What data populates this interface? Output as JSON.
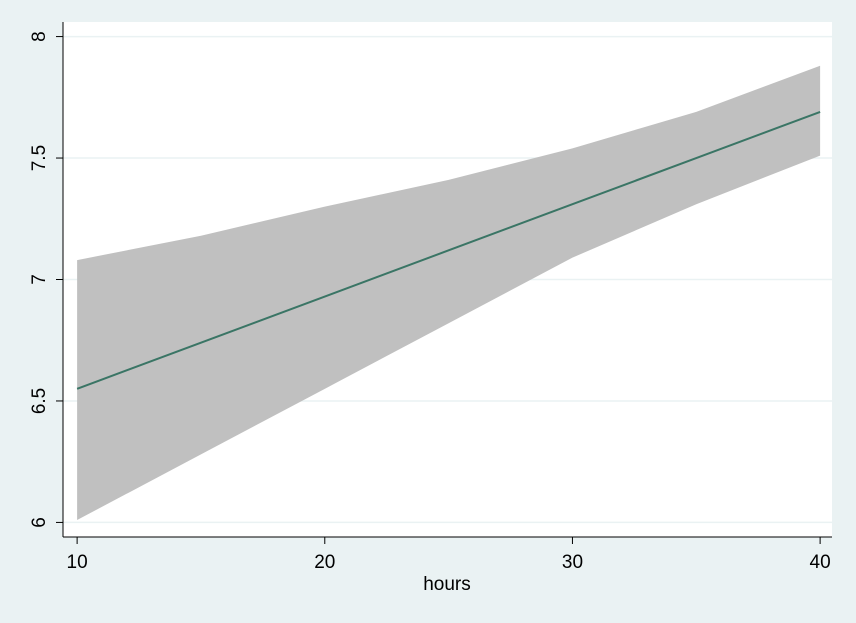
{
  "chart_data": {
    "type": "line",
    "x": [
      10,
      15,
      20,
      25,
      30,
      35,
      40
    ],
    "values": [
      6.55,
      6.74,
      6.93,
      7.12,
      7.31,
      7.5,
      7.69
    ],
    "ci_lower": [
      6.01,
      6.28,
      6.55,
      6.82,
      7.09,
      7.31,
      7.51
    ],
    "ci_upper": [
      7.08,
      7.18,
      7.3,
      7.41,
      7.54,
      7.69,
      7.88
    ],
    "color": "#3a7565",
    "band_color": "#c0c0c0",
    "xlabel": "hours",
    "xlim": [
      9.43,
      40.48
    ],
    "xticks": [
      10,
      20,
      30,
      40
    ],
    "ylim": [
      5.94,
      8.06
    ],
    "yticks": [
      6,
      6.5,
      7,
      7.5,
      8
    ],
    "grid": true
  }
}
